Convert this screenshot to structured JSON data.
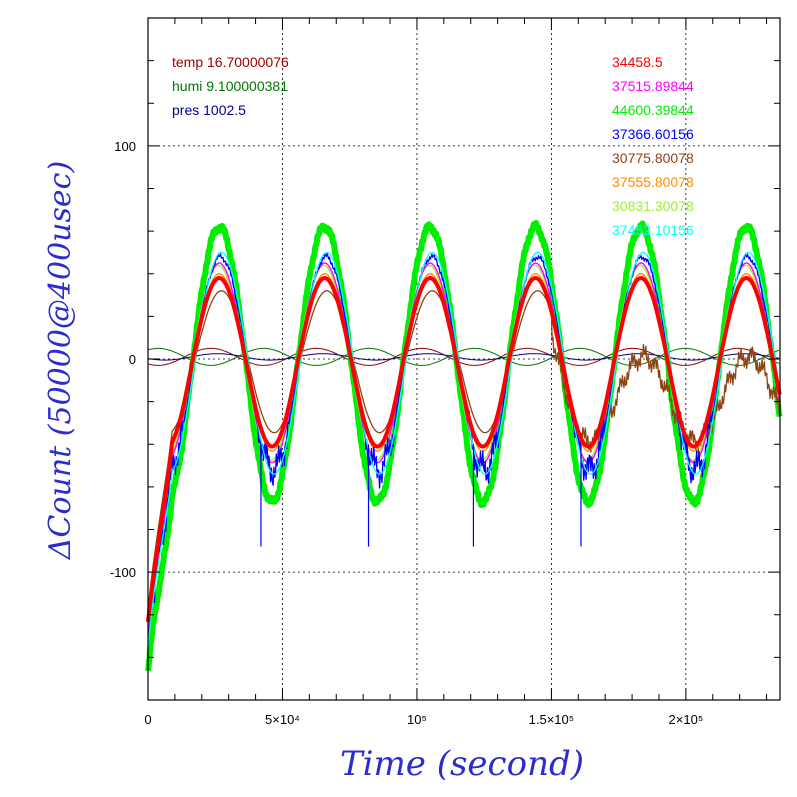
{
  "chart_data": {
    "type": "line",
    "xlabel": "Time (second)",
    "ylabel": "ΔCount (50000@400usec)",
    "xlim": [
      0,
      235000
    ],
    "ylim": [
      -160,
      160
    ],
    "x_ticks": [
      {
        "value": 0,
        "label": "0"
      },
      {
        "value": 50000,
        "label": "5×10⁴"
      },
      {
        "value": 100000,
        "label": "10⁵"
      },
      {
        "value": 150000,
        "label": "1.5×10⁵"
      },
      {
        "value": 200000,
        "label": "2×10⁵"
      }
    ],
    "y_ticks": [
      {
        "value": 100,
        "label": "100"
      },
      {
        "value": 0,
        "label": "0"
      },
      {
        "value": -100,
        "label": "-100"
      }
    ],
    "grid": true,
    "env_labels": [
      {
        "text": "temp 16.70000076",
        "color": "#990000"
      },
      {
        "text": "humi 9.100000381",
        "color": "#007700"
      },
      {
        "text": "pres 1002.5",
        "color": "#000088"
      }
    ],
    "legend_position": "top-right",
    "series": [
      {
        "name": "34458.5",
        "color": "#ff0000",
        "amplitude": 38,
        "peak_shift": 0,
        "width": 4
      },
      {
        "name": "37515.89844",
        "color": "#ff00ff",
        "amplitude": 45,
        "peak_shift": 0,
        "width": 1.4
      },
      {
        "name": "44600.39844",
        "color": "#00ee00",
        "amplitude": 62,
        "peak_shift": 0,
        "width": 6
      },
      {
        "name": "37366.60156",
        "color": "#0000ff",
        "amplitude": 48,
        "peak_shift": 500,
        "width": 1.3
      },
      {
        "name": "30775.80078",
        "color": "#8b4513",
        "amplitude": 32,
        "peak_shift": 800,
        "width": 1.3
      },
      {
        "name": "37555.80078",
        "color": "#ff8c00",
        "amplitude": 40,
        "peak_shift": 0,
        "width": 1.4
      },
      {
        "name": "30831.30078",
        "color": "#99ee33",
        "amplitude": 44,
        "peak_shift": -300,
        "width": 1.4
      },
      {
        "name": "37452.10156",
        "color": "#00ffff",
        "amplitude": 50,
        "peak_shift": 800,
        "width": 1.3
      }
    ],
    "environment_traces": [
      {
        "name": "temp",
        "color": "#990000",
        "amplitude": 4,
        "phase_shift": 0.5
      },
      {
        "name": "humi",
        "color": "#007700",
        "amplitude": -4,
        "phase_shift": 0.5
      },
      {
        "name": "pres",
        "color": "#000088",
        "amplitude": 1.5,
        "phase_shift": 0.1
      }
    ],
    "period_seconds": 39200,
    "first_peak_seconds": 26500
  }
}
